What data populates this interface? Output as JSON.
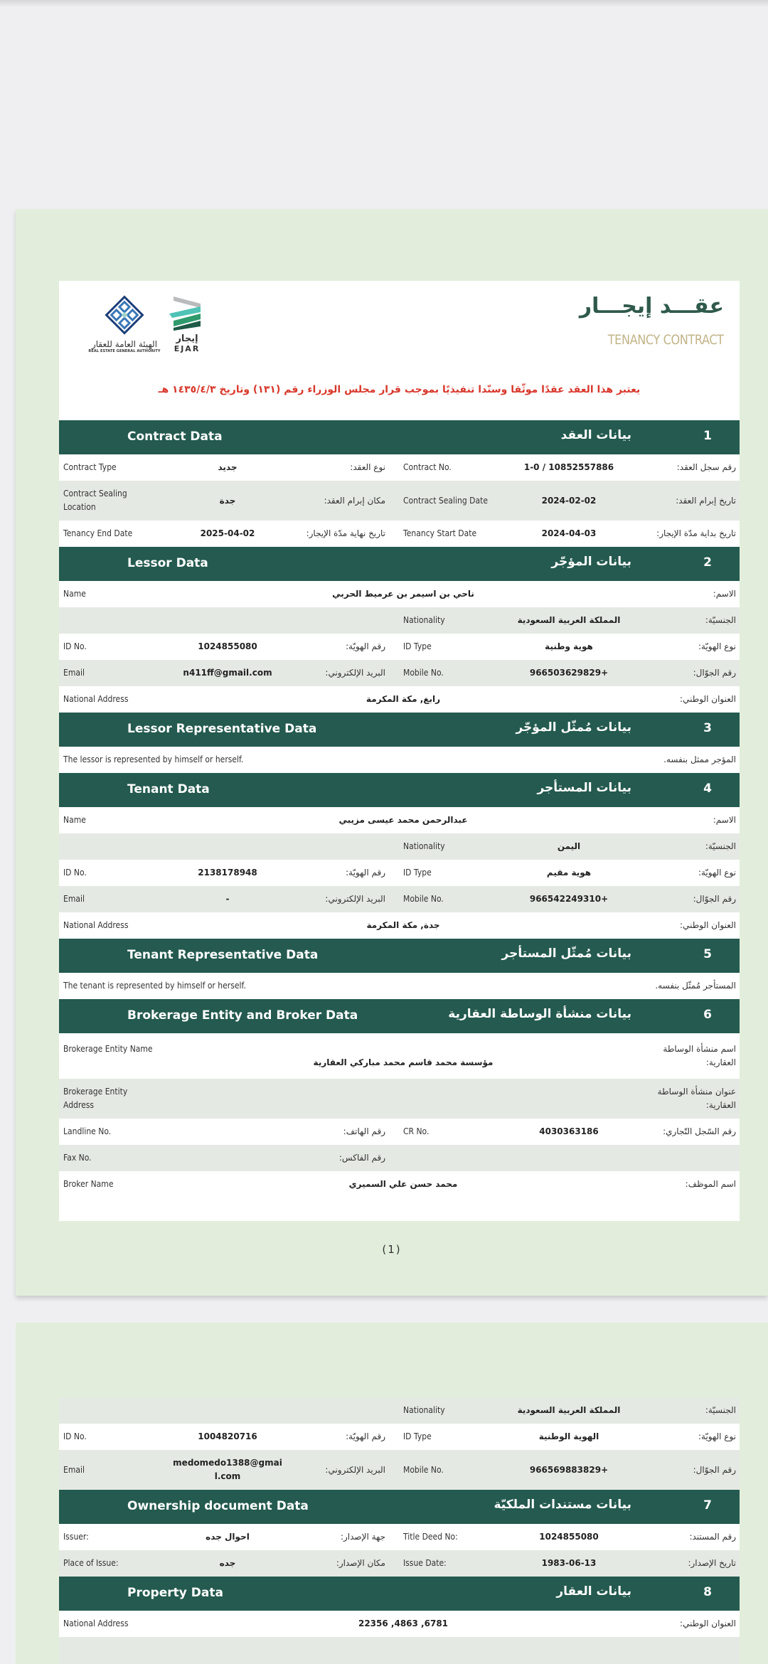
{
  "header": {
    "title_ar": "عقـــد إيجـــار",
    "title_en": "TENANCY CONTRACT",
    "notice": "يعتبر هذا العقد عقدًا موثّقا وسنّدا تنفيذيًا بموجب قرار مجلس الوزراء رقم (١٣١) وتاريخ ١٤٣٥/٤/٣ هـ",
    "ejar_logo": {
      "ar": "إيجار",
      "en": "EJAR"
    },
    "rega_logo": {
      "ar": "الهيئة العامة للعقار",
      "en": "REAL ESTATE GENERAL AUTHORITY"
    }
  },
  "colors": {
    "section_header": "#245a4f",
    "notice": "#d8382c",
    "title": "#2f5a4b",
    "subtitle": "#c2b487",
    "sheet": "#e2eedb",
    "alt_row": "#e5e9e3"
  },
  "page1": {
    "page_number": "(1)",
    "sections": [
      {
        "num": "1",
        "title_en": "Contract Data",
        "title_ar": "بيانات العقد",
        "rows": [
          {
            "type": "pair",
            "en1": "Contract Type",
            "v1": "جديد",
            "ar1": "نوع العقد:",
            "en2": "Contract No.",
            "v2": "10852557886 / 1-0",
            "ar2": "رقم سجل العقد:"
          },
          {
            "type": "pair",
            "en1": "Contract Sealing Location",
            "v1": "جدة",
            "ar1": "مكان إبرام العقد:",
            "en2": "Contract Sealing Date",
            "v2": "2024-02-02",
            "ar2": "تاريخ إبرام العقد:"
          },
          {
            "type": "pair",
            "en1": "Tenancy End Date",
            "v1": "2025-04-02",
            "ar1": "تاريخ نهاية مدّة الإيجار:",
            "en2": "Tenancy Start Date",
            "v2": "2024-04-03",
            "ar2": "تاريخ بداية مدّة الإيجار:"
          }
        ]
      },
      {
        "num": "2",
        "title_en": "Lessor Data",
        "title_ar": "بيانات المؤجّر",
        "rows": [
          {
            "type": "full",
            "en1": "Name",
            "v1": "ناحي بن اسيمر بن عرميط الحربي",
            "ar2": "الاسم:"
          },
          {
            "type": "pair",
            "en1": "",
            "v1": "",
            "ar1": "",
            "en2": "Nationality",
            "v2": "المملكة العربية السعودية",
            "ar2": "الجنسيّة:"
          },
          {
            "type": "pair",
            "en1": "ID No.",
            "v1": "1024855080",
            "ar1": "رقم الهويّة:",
            "en2": "ID Type",
            "v2": "هوية وطنية",
            "ar2": "نوع الهويّة:"
          },
          {
            "type": "pair",
            "en1": "Email",
            "v1": "n411ff@gmail.com",
            "ar1": "البريد الإلكتروني:",
            "en2": "Mobile No.",
            "v2": "+966503629829",
            "ar2": "رقم الجوّال:"
          },
          {
            "type": "full",
            "en1": "National Address",
            "v1": "رابغ, مكة المكرمة",
            "ar2": "العنوان الوطني:"
          }
        ]
      },
      {
        "num": "3",
        "title_en": "Lessor Representative Data",
        "title_ar": "بيانات مُمثّل المؤجّر",
        "rows": [
          {
            "type": "text",
            "en1": "The lessor is represented by himself or herself.",
            "ar2": "المؤجر ممثل بنفسه."
          }
        ]
      },
      {
        "num": "4",
        "title_en": "Tenant Data",
        "title_ar": "بيانات المستأجر",
        "rows": [
          {
            "type": "full",
            "en1": "Name",
            "v1": "عبدالرحمن محمد عيسى مزيبي",
            "ar2": "الاسم:"
          },
          {
            "type": "pair",
            "en1": "",
            "v1": "",
            "ar1": "",
            "en2": "Nationality",
            "v2": "اليمن",
            "ar2": "الجنسيّة:"
          },
          {
            "type": "pair",
            "en1": "ID No.",
            "v1": "2138178948",
            "ar1": "رقم الهويّة:",
            "en2": "ID Type",
            "v2": "هوية مقيم",
            "ar2": "نوع الهويّة:"
          },
          {
            "type": "pair",
            "en1": "Email",
            "v1": "-",
            "ar1": "البريد الإلكتروني:",
            "en2": "Mobile No.",
            "v2": "+966542249310",
            "ar2": "رقم الجوّال:"
          },
          {
            "type": "full",
            "en1": "National Address",
            "v1": "جدة, مكة المكرمة",
            "ar2": "العنوان الوطني:"
          }
        ]
      },
      {
        "num": "5",
        "title_en": "Tenant Representative Data",
        "title_ar": "بيانات مُمثّل المستأجر",
        "rows": [
          {
            "type": "text",
            "en1": "The tenant is represented by himself or herself.",
            "ar2": "المستأجر مُمثّل بنفسه."
          }
        ]
      },
      {
        "num": "6",
        "title_en": "Brokerage Entity and Broker Data",
        "title_ar": "بيانات منشأة الوساطة العقارية",
        "rows": [
          {
            "type": "full",
            "en1": "Brokerage Entity Name",
            "v1": "مؤسسة محمد قاسم محمد مباركي العقارية",
            "ar2": "اسم منشأة الوساطة العقارية:"
          },
          {
            "type": "full",
            "en1": "Brokerage Entity Address",
            "v1": "",
            "ar2": "عنوان منشأة الوساطة العقارية:"
          },
          {
            "type": "pair",
            "en1": "Landline No.",
            "v1": "",
            "ar1": "رقم الهاتف:",
            "en2": "CR No.",
            "v2": "4030363186",
            "ar2": "رقم السّجل التّجاري:"
          },
          {
            "type": "pair",
            "en1": "Fax No.",
            "v1": "",
            "ar1": "رقم الفاكس:",
            "en2": "",
            "v2": "",
            "ar2": ""
          },
          {
            "type": "full",
            "en1": "Broker Name",
            "v1": "محمد حسن علي السميري",
            "ar2": "اسم الموظف:"
          }
        ]
      }
    ]
  },
  "page2": {
    "continued_rows": [
      {
        "type": "pair",
        "en1": "",
        "v1": "",
        "ar1": "",
        "en2": "Nationality",
        "v2": "المملكة العربية السعودية",
        "ar2": "الجنسيّة:"
      },
      {
        "type": "pair",
        "en1": "ID No.",
        "v1": "1004820716",
        "ar1": "رقم الهويّة:",
        "en2": "ID Type",
        "v2": "الهوية الوطنية",
        "ar2": "نوع الهويّة:"
      },
      {
        "type": "pair",
        "en1": "Email",
        "v1": "medomedo1388@gmail.com",
        "ar1": "البريد الإلكتروني:",
        "en2": "Mobile No.",
        "v2": "+966569883829",
        "ar2": "رقم الجوّال:"
      }
    ],
    "sections": [
      {
        "num": "7",
        "title_en": "Ownership document Data",
        "title_ar": "بيانات مستندات الملكيّة",
        "rows": [
          {
            "type": "pair",
            "en1": "Issuer:",
            "v1": "احوال جده",
            "ar1": "جهة الإصدار:",
            "en2": "Title Deed No:",
            "v2": "1024855080",
            "ar2": "رقم المستند:"
          },
          {
            "type": "pair",
            "en1": "Place of Issue:",
            "v1": "جده",
            "ar1": "مكان الإصدار:",
            "en2": "Issue Date:",
            "v2": "1983-06-13",
            "ar2": "تاريخ الإصدار:"
          }
        ]
      },
      {
        "num": "8",
        "title_en": "Property Data",
        "title_ar": "بيانات العقار",
        "rows": [
          {
            "type": "full",
            "en1": "National Address",
            "v1": "6781, 4863, 22356",
            "ar2": "العنوان الوطني:"
          }
        ]
      }
    ]
  }
}
